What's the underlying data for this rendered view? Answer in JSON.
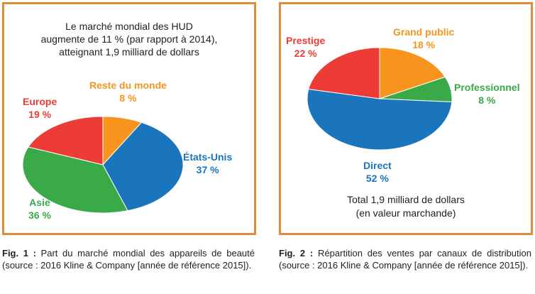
{
  "colors": {
    "frame": "#e08a3a",
    "orange": "#f7941d",
    "blue": "#1b75bc",
    "green": "#3aaa49",
    "red": "#ed3c36"
  },
  "chart_data": [
    {
      "type": "pie",
      "title_lines": [
        "Le marché mondial des HUD",
        "augmente de 11 %  (par rapport à 2014),",
        "atteignant 1,9 milliard de dollars"
      ],
      "slices": [
        {
          "label": "Reste du monde",
          "value": 8,
          "value_text": "8 %",
          "color": "#f7941d"
        },
        {
          "label": "États-Unis",
          "value": 37,
          "value_text": "37 %",
          "color": "#1b75bc"
        },
        {
          "label": "Asie",
          "value": 36,
          "value_text": "36 %",
          "color": "#3aaa49"
        },
        {
          "label": "Europe",
          "value": 19,
          "value_text": "19 %",
          "color": "#ed3c36"
        }
      ]
    },
    {
      "type": "pie",
      "slices": [
        {
          "label": "Grand public",
          "value": 18,
          "value_text": "18 %",
          "color": "#f7941d"
        },
        {
          "label": "Professionnel",
          "value": 8,
          "value_text": "8 %",
          "color": "#3aaa49"
        },
        {
          "label": "Direct",
          "value": 52,
          "value_text": "52 %",
          "color": "#1b75bc"
        },
        {
          "label": "Prestige",
          "value": 22,
          "value_text": "22 %",
          "color": "#ed3c36"
        }
      ],
      "note_lines": [
        "Total 1,9 milliard de dollars",
        "(en valeur marchande)"
      ]
    }
  ],
  "captions": [
    {
      "prefix": "Fig. 1 :",
      "text": " Part du marché mondial des appareils de beauté (source : 2016 Kline & Company [année de référence 2015])."
    },
    {
      "prefix": "Fig. 2 :",
      "text": " Répartition des ventes par canaux de distribution (source : 2016 Kline & Company [année de référence 2015])."
    }
  ]
}
